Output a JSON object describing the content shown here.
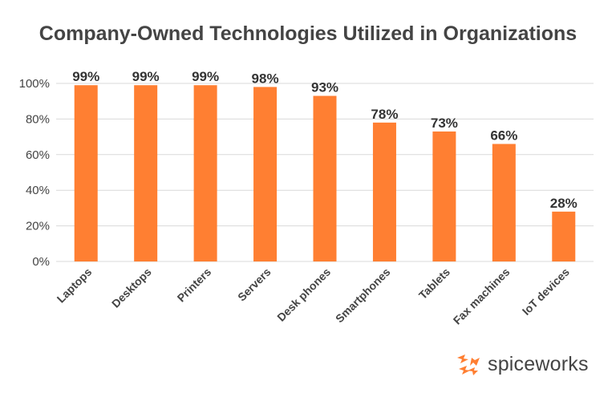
{
  "chart_data": {
    "type": "bar",
    "title": "Company-Owned Technologies Utilized in Organizations",
    "categories": [
      "Laptops",
      "Desktops",
      "Printers",
      "Servers",
      "Desk phones",
      "Smartphones",
      "Tablets",
      "Fax machines",
      "IoT devices"
    ],
    "values": [
      99,
      99,
      99,
      98,
      93,
      78,
      73,
      66,
      28
    ],
    "data_labels": [
      "99%",
      "99%",
      "99%",
      "98%",
      "93%",
      "78%",
      "73%",
      "66%",
      "28%"
    ],
    "y_ticks": [
      "0%",
      "20%",
      "40%",
      "60%",
      "80%",
      "100%"
    ],
    "ylim": [
      0,
      100
    ],
    "xlabel": "",
    "ylabel": "",
    "grid": true,
    "legend": "none",
    "bar_color": "#FF7F32",
    "grid_color": "#D9D9D9"
  },
  "brand": {
    "name": "spiceworks",
    "logo_icon": "spiceworks-logo-icon",
    "logo_color": "#FF7F32"
  }
}
